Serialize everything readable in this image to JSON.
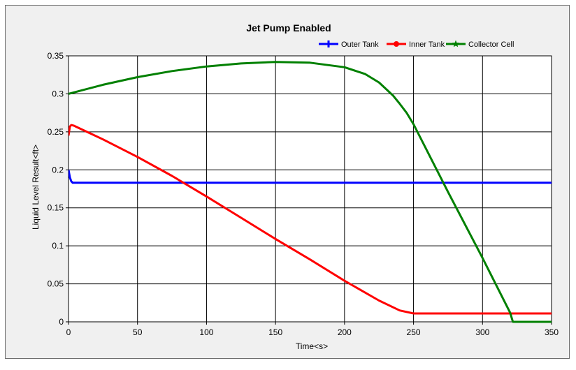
{
  "chart_data": {
    "type": "line",
    "title": "Jet Pump Enabled",
    "xlabel": "Time<s>",
    "ylabel": "Liquid Level Result<ft>",
    "xlim": [
      0,
      350
    ],
    "ylim": [
      0,
      0.35
    ],
    "xticks": [
      "0",
      "50",
      "100",
      "150",
      "200",
      "250",
      "300",
      "350"
    ],
    "yticks": [
      "0",
      "0.05",
      "0.1",
      "0.15",
      "0.2",
      "0.25",
      "0.3",
      "0.35"
    ],
    "grid": true,
    "legend_position": "top-right",
    "series": [
      {
        "name": "Outer Tank",
        "color": "#0000ff",
        "marker": "plus",
        "x": [
          0,
          1,
          2,
          3,
          5,
          50,
          100,
          150,
          200,
          250,
          300,
          350
        ],
        "y": [
          0.2,
          0.19,
          0.185,
          0.183,
          0.183,
          0.183,
          0.183,
          0.183,
          0.183,
          0.183,
          0.183,
          0.183
        ]
      },
      {
        "name": "Inner Tank",
        "color": "#ff0000",
        "marker": "circle",
        "x": [
          0,
          1,
          2,
          4,
          25,
          50,
          75,
          100,
          125,
          150,
          175,
          200,
          225,
          240,
          250,
          300,
          350
        ],
        "y": [
          0.245,
          0.257,
          0.259,
          0.258,
          0.24,
          0.217,
          0.192,
          0.165,
          0.137,
          0.109,
          0.082,
          0.054,
          0.028,
          0.015,
          0.011,
          0.011,
          0.011
        ]
      },
      {
        "name": "Collector Cell",
        "color": "#008000",
        "marker": "star",
        "x": [
          0,
          25,
          50,
          75,
          100,
          125,
          150,
          175,
          200,
          215,
          225,
          235,
          240,
          245,
          250,
          275,
          300,
          320,
          322,
          350
        ],
        "y": [
          0.3,
          0.312,
          0.322,
          0.33,
          0.336,
          0.34,
          0.342,
          0.341,
          0.335,
          0.326,
          0.315,
          0.298,
          0.287,
          0.275,
          0.26,
          0.171,
          0.084,
          0.012,
          0,
          0
        ]
      }
    ]
  }
}
